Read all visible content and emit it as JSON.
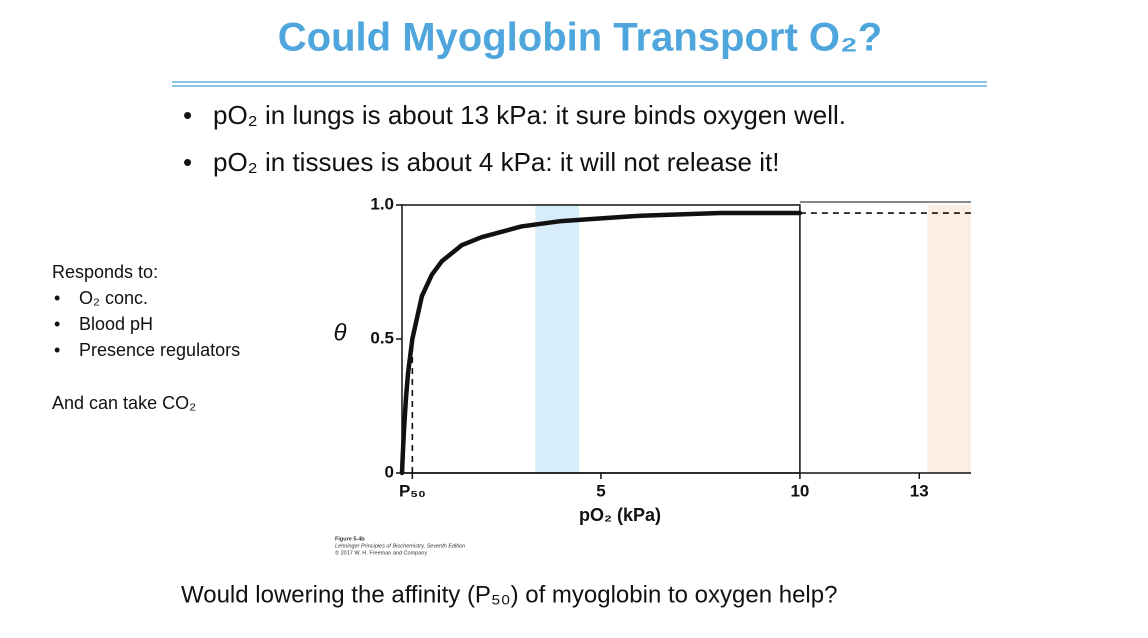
{
  "slide": {
    "title": "Could Myoglobin Transport O₂?",
    "bullets": [
      "pO₂ in lungs is about 13 kPa: it sure binds oxygen well.",
      "pO₂ in tissues is about 4 kPa: it will not release it!"
    ],
    "side_note": {
      "heading": "Responds to:",
      "items": [
        "O₂ conc.",
        "Blood pH",
        "Presence regulators"
      ],
      "footer": "And can take CO₂"
    },
    "question": "Would lowering the affinity (P₅₀) of myoglobin to oxygen help?"
  },
  "chart_data": {
    "type": "line",
    "x_label": "pO₂ (kPa)",
    "y_label": "θ",
    "caption": [
      "Figure 5-4b",
      "Lehninger Principles of Biochemistry, Seventh Edition",
      "© 2017 W. H. Freeman and Company"
    ],
    "xlim": [
      0,
      14.3
    ],
    "ylim": [
      0,
      1
    ],
    "xticks": [
      {
        "value": 0.26,
        "label": "P₅₀"
      },
      5,
      10,
      13
    ],
    "yticks": [
      0,
      0.5,
      {
        "value": 1,
        "label": "1.0"
      }
    ],
    "bands": [
      {
        "x": [
          3.35,
          4.45
        ],
        "color": "#d8edfa"
      },
      {
        "x": [
          13.2,
          14.3
        ],
        "color": "#fdeee1"
      }
    ],
    "series": [
      {
        "color": "#111111",
        "dashed": false,
        "x": [
          0,
          0.02,
          0.05,
          0.1,
          0.15,
          0.26,
          0.5,
          0.75,
          1,
          1.5,
          2,
          3,
          4,
          5,
          6,
          8,
          10
        ],
        "values": [
          0,
          0.07,
          0.16,
          0.28,
          0.37,
          0.5,
          0.66,
          0.74,
          0.79,
          0.85,
          0.88,
          0.92,
          0.94,
          0.95,
          0.96,
          0.97,
          0.97
        ]
      },
      {
        "color": "#111111",
        "dashed": true,
        "x": [
          10,
          14.3
        ],
        "values": [
          0.97,
          0.97
        ]
      },
      {
        "color": "#111111",
        "dashed": true,
        "x": [
          0.26,
          0.26
        ],
        "values": [
          0,
          0.5
        ]
      }
    ]
  }
}
